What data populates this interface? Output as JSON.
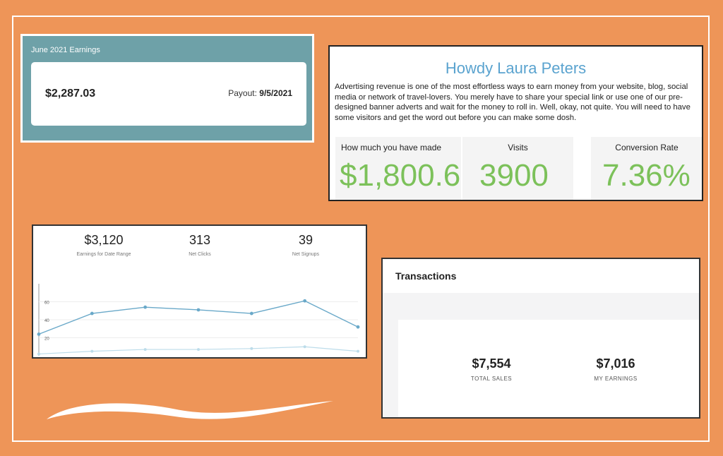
{
  "earnings_card": {
    "header": "June 2021 Earnings",
    "amount": "$2,287.03",
    "payout_label": "Payout:",
    "payout_date": "9/5/2021"
  },
  "howdy_card": {
    "title": "Howdy Laura Peters",
    "description": "Advertising revenue is one of the most effortless ways to earn money from your website, blog, social media or network of travel-lovers. You merely have to share your special link or use one of our pre-designed banner adverts and wait for the money to roll in. Well, okay, not quite. You will need to have some visitors and get the word out before you can make some dosh.",
    "stats": [
      {
        "label": "How much you have made",
        "value": "$1,800.6"
      },
      {
        "label": "Visits",
        "value": "3900"
      },
      {
        "label": "Conversion Rate",
        "value": "7.36%"
      }
    ]
  },
  "stats_chart_card": {
    "kpis": [
      {
        "value": "$3,120",
        "label": "Earnings for Date Range"
      },
      {
        "value": "313",
        "label": "Net Clicks"
      },
      {
        "value": "39",
        "label": "Net Signups"
      }
    ]
  },
  "chart_data": {
    "type": "line",
    "ylim": [
      0,
      80
    ],
    "yticks": [
      "20",
      "40",
      "60"
    ],
    "series": [
      {
        "values": [
          24,
          47,
          54,
          51,
          47,
          61,
          32
        ],
        "color": "#6aa9c9"
      },
      {
        "values": [
          2,
          5,
          7,
          7,
          8,
          10,
          5
        ],
        "color": "#bcdcea"
      }
    ]
  },
  "transactions_card": {
    "title": "Transactions",
    "metrics": [
      {
        "value": "$7,554",
        "label": "TOTAL SALES"
      },
      {
        "value": "$7,016",
        "label": "MY EARNINGS"
      }
    ]
  },
  "colors": {
    "background": "#ee9558",
    "earnings_card": "#6ea1a8",
    "accent_blue": "#5aa3cf",
    "accent_green": "#7cc15a"
  }
}
